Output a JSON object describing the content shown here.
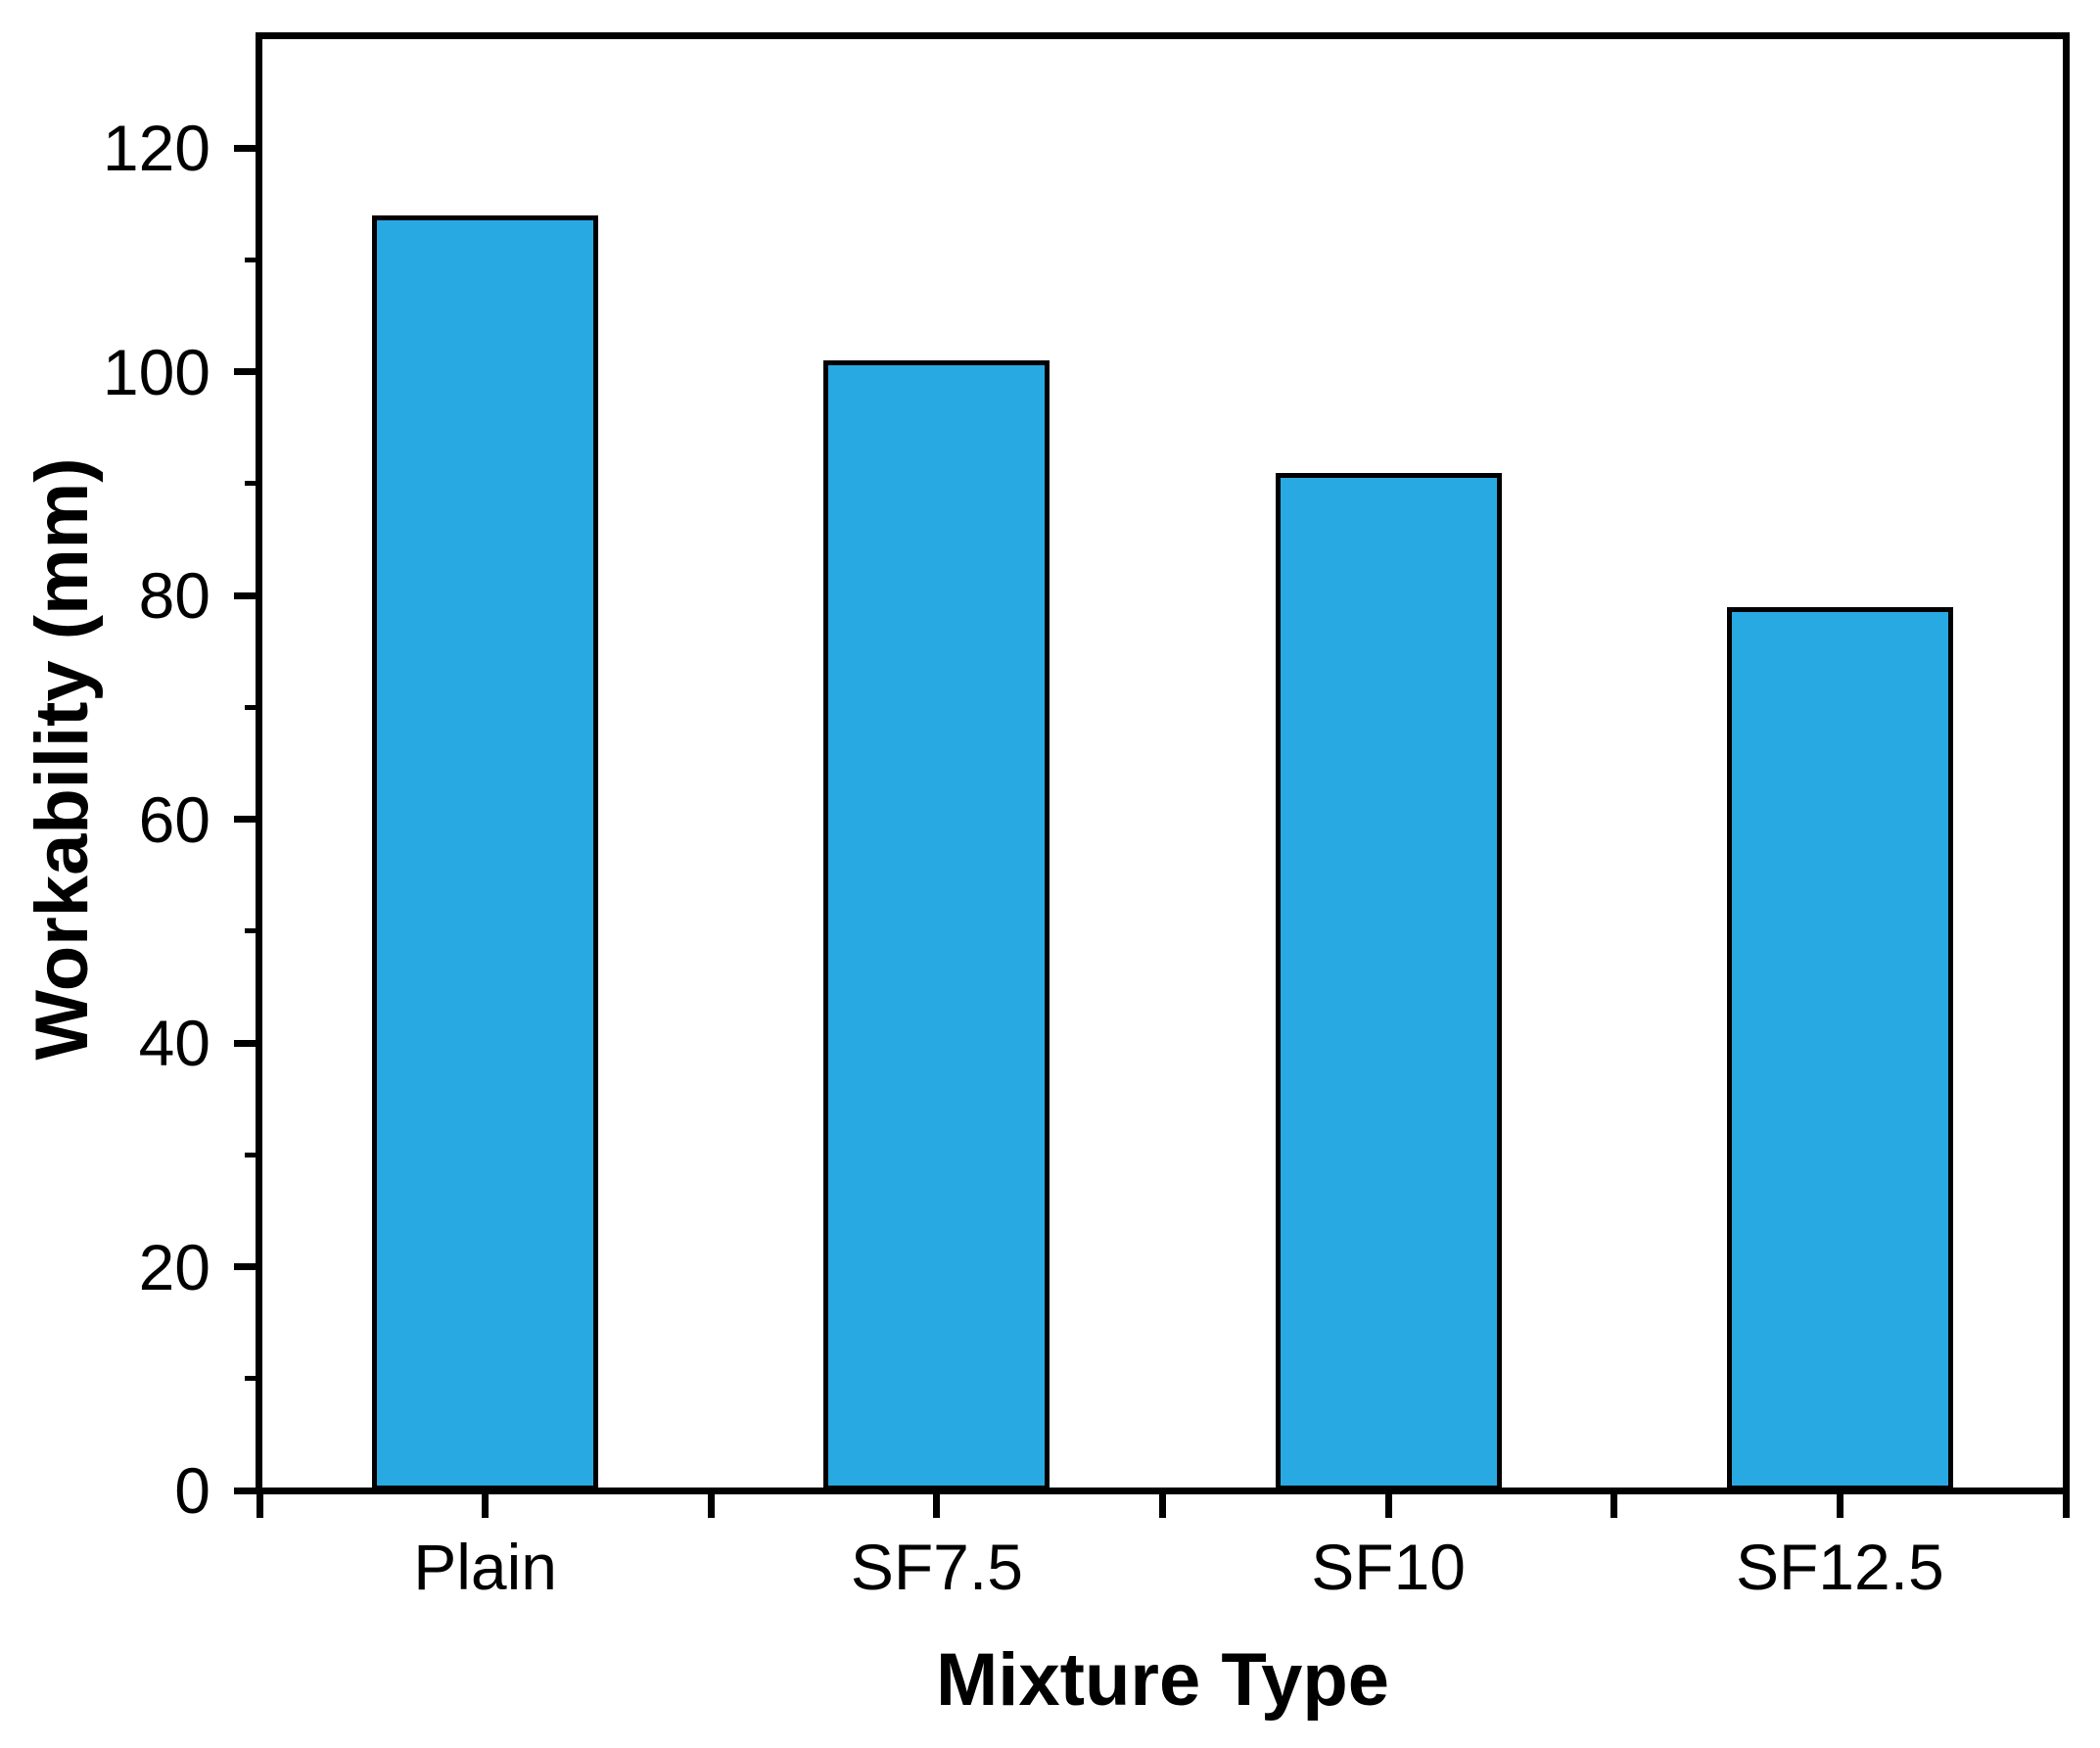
{
  "chart_data": {
    "type": "bar",
    "title": "",
    "categories": [
      "Plain",
      "SF7.5",
      "SF10",
      "SF12.5"
    ],
    "values": [
      114,
      101,
      91,
      79
    ],
    "series_name": "Workability",
    "xlabel": "Mixture Type",
    "ylabel": "Workability (mm)",
    "ylim": [
      0,
      130
    ],
    "y_major_ticks": [
      0,
      20,
      40,
      60,
      80,
      100,
      120
    ],
    "y_minor_ticks": [
      10,
      30,
      50,
      70,
      90,
      110
    ],
    "x_tick_positions_category_units": [
      0.5,
      1,
      1.5,
      2,
      2.5,
      3,
      3.5,
      4,
      4.5
    ],
    "x_range_category_units": [
      0.5,
      4.5
    ],
    "bar_width_category_fraction": 0.5,
    "grid": false,
    "legend": "none",
    "frame": "full-box",
    "colors": {
      "bar_fill": "#29A9E1",
      "bar_edge": "#000000",
      "axis": "#000000",
      "text": "#000000",
      "background": "#FFFFFF"
    }
  }
}
